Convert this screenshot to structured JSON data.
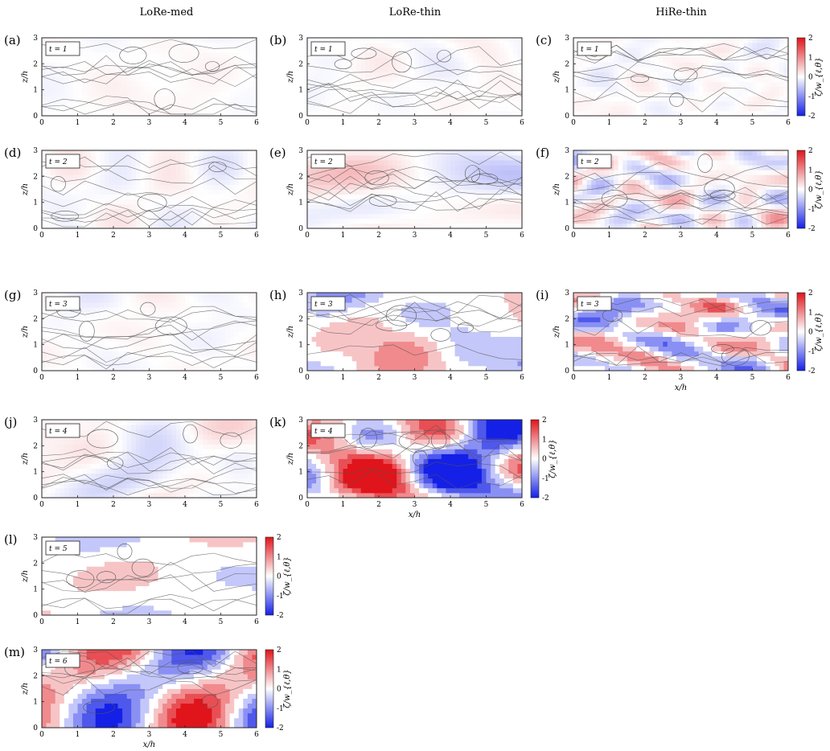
{
  "figure": {
    "column_titles": [
      "LoRe-med",
      "LoRe-thin",
      "HiRe-thin"
    ],
    "colorbar": {
      "label": "ζ/w_{ℓ,θ}",
      "ticks": [
        "2",
        "1",
        "0",
        "-1",
        "-2"
      ],
      "range": [
        -2,
        2
      ]
    },
    "x_ticks": [
      "0",
      "1",
      "2",
      "3",
      "4",
      "5",
      "6"
    ],
    "z_ticks": [
      "0",
      "1",
      "2",
      "3"
    ],
    "x_axis_label": "x/h",
    "z_axis_label": "z/h",
    "panels": [
      {
        "label": "(a)",
        "t": "t = 1",
        "intensity": 0.08,
        "scale": 1.0,
        "fill": false,
        "seed": 11
      },
      {
        "label": "(b)",
        "t": "t = 1",
        "intensity": 0.08,
        "scale": 1.0,
        "fill": false,
        "seed": 12
      },
      {
        "label": "(c)",
        "t": "t = 1",
        "intensity": 0.08,
        "scale": 1.6,
        "fill": false,
        "seed": 13,
        "colorbar": true
      },
      {
        "label": "(d)",
        "t": "t = 2",
        "intensity": 0.12,
        "scale": 1.0,
        "fill": false,
        "seed": 21
      },
      {
        "label": "(e)",
        "t": "t = 2",
        "intensity": 0.2,
        "scale": 1.0,
        "fill": false,
        "seed": 22
      },
      {
        "label": "(f)",
        "t": "t = 2",
        "intensity": 0.35,
        "scale": 1.6,
        "fill": false,
        "seed": 23,
        "colorbar": true
      },
      {
        "label": "(g)",
        "t": "t = 3",
        "intensity": 0.15,
        "scale": 1.0,
        "fill": false,
        "seed": 31
      },
      {
        "label": "(h)",
        "t": "t = 3",
        "intensity": 0.5,
        "scale": 1.0,
        "fill": true,
        "seed": 32
      },
      {
        "label": "(i)",
        "t": "t = 3",
        "intensity": 1.0,
        "scale": 1.6,
        "fill": true,
        "seed": 33,
        "colorbar": true,
        "xlabel": true
      },
      {
        "label": "(j)",
        "t": "t = 4",
        "intensity": 0.25,
        "scale": 1.0,
        "fill": false,
        "seed": 41
      },
      {
        "label": "(k)",
        "t": "t = 4",
        "intensity": 1.0,
        "scale": 0.8,
        "fill": true,
        "seed": 42,
        "colorbar": true,
        "xlabel": true
      },
      {
        "label": "(l)",
        "t": "t = 5",
        "intensity": 0.45,
        "scale": 0.7,
        "fill": true,
        "seed": 51,
        "colorbar": true
      },
      {
        "label": "(m)",
        "t": "t = 6",
        "intensity": 0.85,
        "scale": 0.7,
        "fill": true,
        "seed": 61,
        "colorbar": true,
        "xlabel": true
      }
    ]
  }
}
